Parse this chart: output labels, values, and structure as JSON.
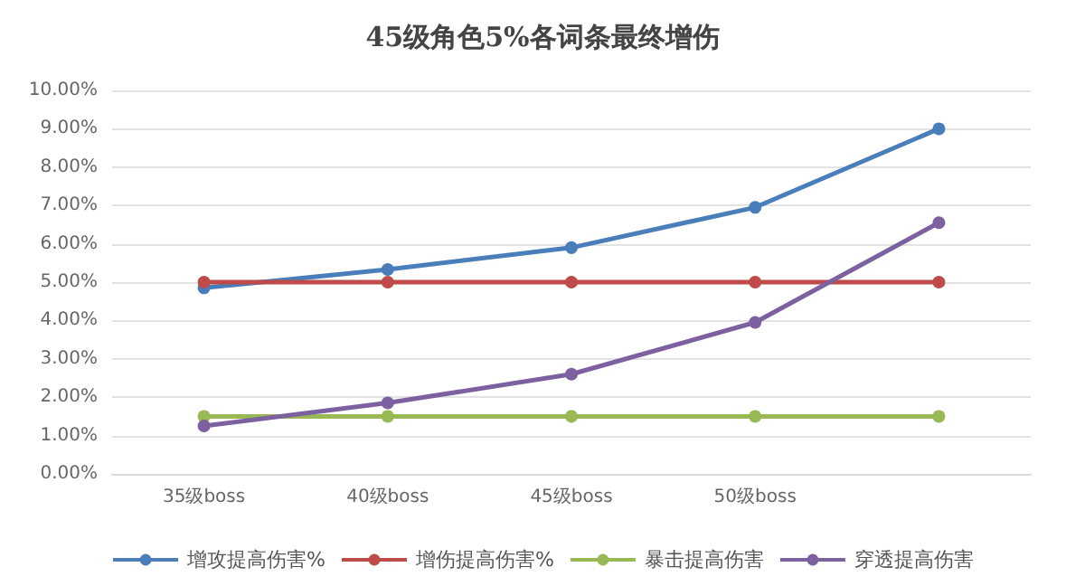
{
  "chart_data": {
    "type": "line",
    "title": "45级角色5%各词条最终增伤",
    "categories": [
      "35级boss",
      "40级boss",
      "45级boss",
      "50级boss",
      null
    ],
    "series": [
      {
        "name": "增攻提高伤害%",
        "color": "#4a7ebb",
        "values": [
          4.85,
          5.33,
          5.9,
          6.95,
          9.0
        ]
      },
      {
        "name": "增伤提高伤害%",
        "color": "#be4b48",
        "values": [
          5.0,
          5.0,
          5.0,
          5.0,
          5.0
        ]
      },
      {
        "name": "暴击提高伤害",
        "color": "#98b954",
        "values": [
          1.5,
          1.5,
          1.5,
          1.5,
          1.5
        ]
      },
      {
        "name": "穿透提高伤害",
        "color": "#7d60a0",
        "values": [
          1.25,
          1.85,
          2.6,
          3.95,
          6.55
        ]
      }
    ],
    "ylim": [
      0,
      10
    ],
    "yticks": [
      {
        "value": 0,
        "label": "0.00%"
      },
      {
        "value": 1,
        "label": "1.00%"
      },
      {
        "value": 2,
        "label": "2.00%"
      },
      {
        "value": 3,
        "label": "3.00%"
      },
      {
        "value": 4,
        "label": "4.00%"
      },
      {
        "value": 5,
        "label": "5.00%"
      },
      {
        "value": 6,
        "label": "6.00%"
      },
      {
        "value": 7,
        "label": "7.00%"
      },
      {
        "value": 8,
        "label": "8.00%"
      },
      {
        "value": 9,
        "label": "9.00%"
      },
      {
        "value": 10,
        "label": "10.00%"
      }
    ],
    "grid": "y",
    "legend": "bottom",
    "marker": "circle",
    "line_style": "solid"
  }
}
